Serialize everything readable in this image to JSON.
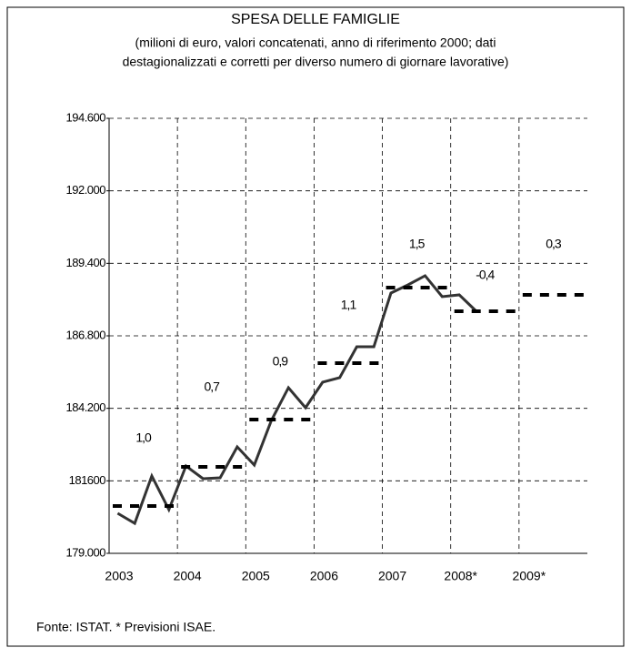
{
  "chart_data": {
    "type": "line",
    "title": "SPESA DELLE FAMIGLIE",
    "subtitle": [
      "(milioni di euro, valori concatenati, anno di riferimento 2000; dati",
      "destagionalizzati e corretti per diverso numero di giornare lavorative)"
    ],
    "source": "Fonte: ISTAT. * Previsioni ISAE.",
    "xlim": [
      2003,
      2010
    ],
    "xticks": [
      2003,
      2004,
      2005,
      2006,
      2007,
      {
        "value": 2008,
        "label": "2008*"
      },
      {
        "value": 2009,
        "label": "2009*"
      }
    ],
    "ylim": [
      179000,
      194600
    ],
    "yticks": [
      {
        "value": 179000,
        "label": "179.000"
      },
      {
        "value": 181600,
        "label": "181600"
      },
      {
        "value": 184200,
        "label": "184.200"
      },
      {
        "value": 186800,
        "label": "186.800"
      },
      {
        "value": 189400,
        "label": "189.400"
      },
      {
        "value": 192000,
        "label": "192.000"
      },
      {
        "value": 194600,
        "label": "194.600"
      }
    ],
    "grid": true,
    "series": [
      {
        "color": "#333333",
        "style": "solid",
        "x": [
          2003.125,
          2003.375,
          2003.625,
          2003.875,
          2004.125,
          2004.375,
          2004.625,
          2004.875,
          2005.125,
          2005.375,
          2005.625,
          2005.875,
          2006.125,
          2006.375,
          2006.625,
          2006.875,
          2007.125,
          2007.375,
          2007.625,
          2007.875,
          2008.125,
          2008.375
        ],
        "values": [
          180436,
          180077,
          181774,
          180567,
          182133,
          181676,
          181709,
          182819,
          182166,
          183765,
          184940,
          184222,
          185136,
          185299,
          186409,
          186409,
          188334,
          188628,
          188955,
          188204,
          188269,
          187681
        ]
      },
      {
        "color": "#000000",
        "style": "annual-dash",
        "x": [
          2003,
          2004,
          2005,
          2006,
          2007,
          2008,
          2009
        ],
        "values": [
          180697,
          182100,
          183798,
          185821,
          188530,
          187681,
          188269
        ]
      }
    ],
    "annotations": [
      {
        "x": 2003,
        "text": "1,0"
      },
      {
        "x": 2004,
        "text": "0,7"
      },
      {
        "x": 2005,
        "text": "0,9"
      },
      {
        "x": 2006,
        "text": "1,1"
      },
      {
        "x": 2007,
        "text": "1,5"
      },
      {
        "x": 2008,
        "text": "-0,4"
      },
      {
        "x": 2009,
        "text": "0,3"
      }
    ]
  }
}
